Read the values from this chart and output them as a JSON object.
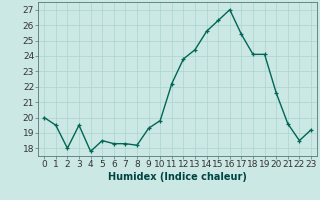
{
  "x": [
    0,
    1,
    2,
    3,
    4,
    5,
    6,
    7,
    8,
    9,
    10,
    11,
    12,
    13,
    14,
    15,
    16,
    17,
    18,
    19,
    20,
    21,
    22,
    23
  ],
  "y": [
    20.0,
    19.5,
    18.0,
    19.5,
    17.8,
    18.5,
    18.3,
    18.3,
    18.2,
    19.3,
    19.8,
    22.2,
    23.8,
    24.4,
    25.6,
    26.3,
    27.0,
    25.4,
    24.1,
    24.1,
    21.6,
    19.6,
    18.5,
    19.2
  ],
  "line_color": "#006655",
  "marker": "+",
  "marker_color": "#006655",
  "bg_color": "#cce8e4",
  "grid_color": "#aad4d0",
  "xlabel": "Humidex (Indice chaleur)",
  "ylim": [
    17.5,
    27.5
  ],
  "yticks": [
    18,
    19,
    20,
    21,
    22,
    23,
    24,
    25,
    26,
    27
  ],
  "xticks": [
    0,
    1,
    2,
    3,
    4,
    5,
    6,
    7,
    8,
    9,
    10,
    11,
    12,
    13,
    14,
    15,
    16,
    17,
    18,
    19,
    20,
    21,
    22,
    23
  ],
  "xlabel_fontsize": 7,
  "tick_fontsize": 6.5,
  "linewidth": 1.0
}
